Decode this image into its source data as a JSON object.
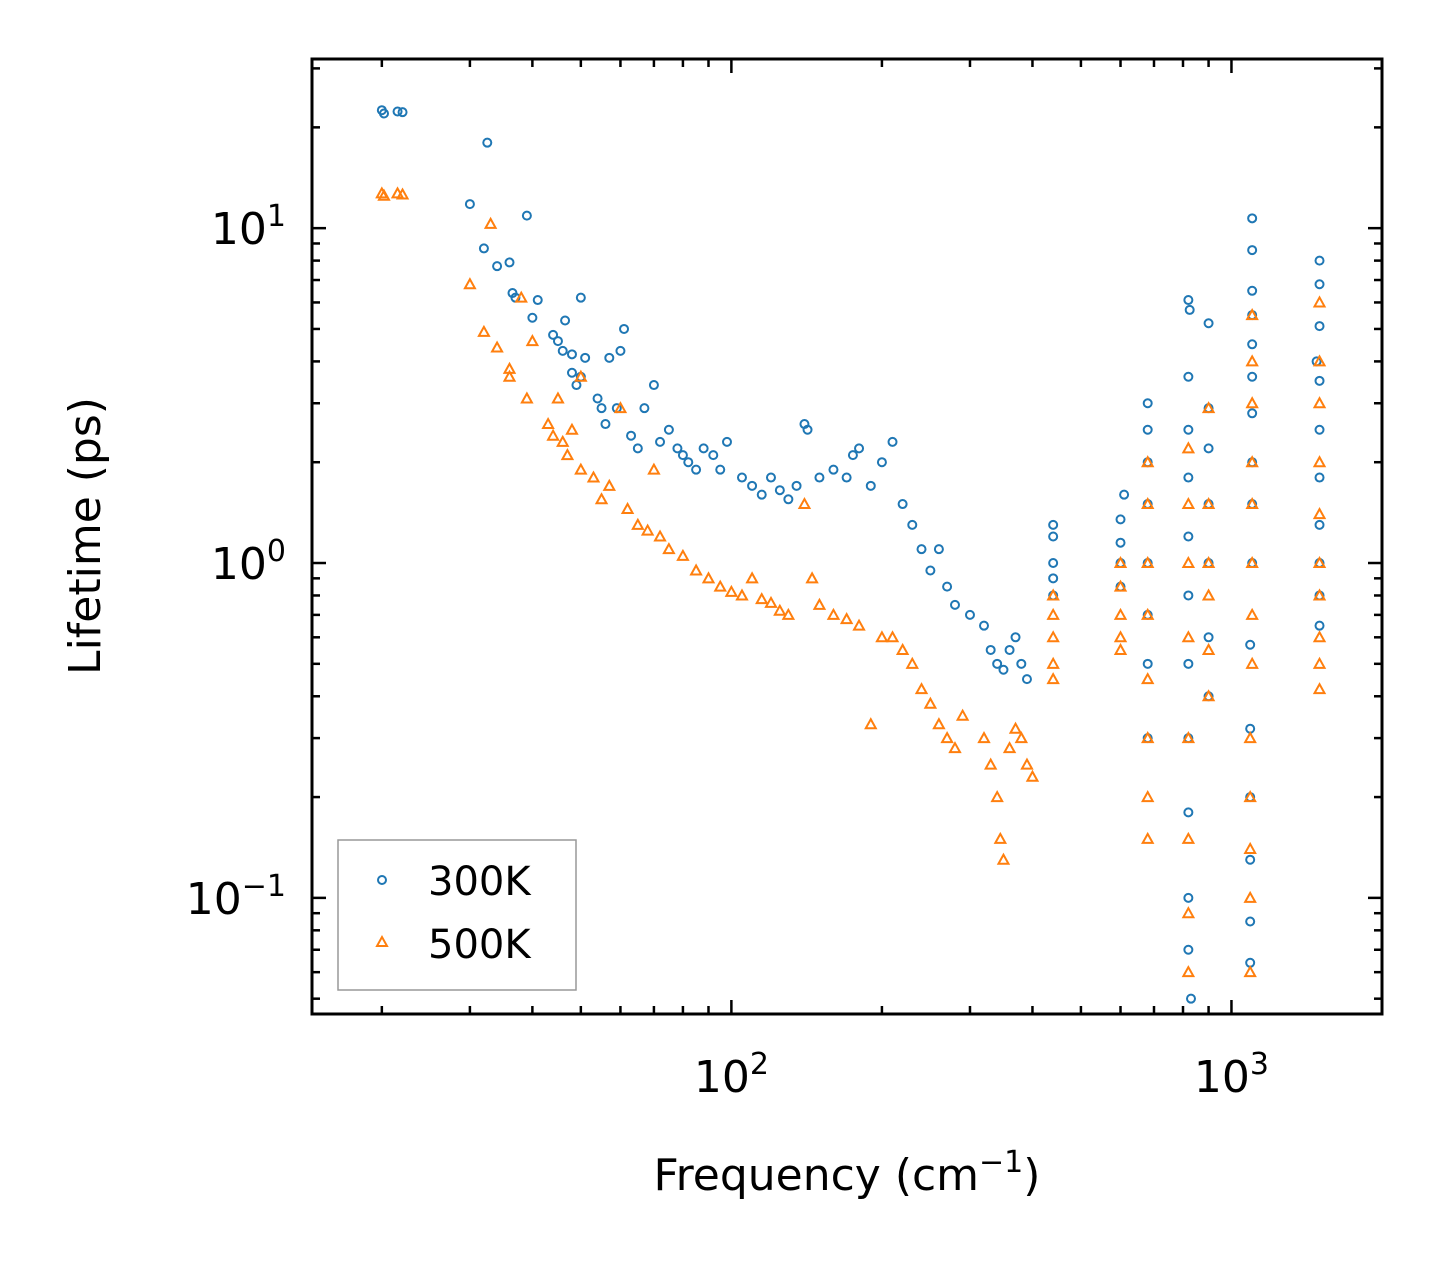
{
  "chart_data": {
    "type": "scatter",
    "title": "",
    "xlabel": "Frequency (cm",
    "xlabel_sup": "−1",
    "xlabel_close": ")",
    "ylabel": "Lifetime (ps)",
    "xscale": "log",
    "yscale": "log",
    "xlim": [
      14.5,
      2000
    ],
    "ylim": [
      0.045,
      32
    ],
    "x_ticks": [
      {
        "value": 100,
        "base": "10",
        "exp": "2"
      },
      {
        "value": 1000,
        "base": "10",
        "exp": "3"
      }
    ],
    "y_ticks": [
      {
        "value": 0.1,
        "base": "10",
        "exp": "−1"
      },
      {
        "value": 1,
        "base": "10",
        "exp": "0"
      },
      {
        "value": 10,
        "base": "10",
        "exp": "1"
      }
    ],
    "legend_position": "lower-left",
    "series": [
      {
        "name": "300K",
        "marker": "circle",
        "color": "#1f77b4",
        "points": [
          [
            20,
            22.5
          ],
          [
            20.2,
            22
          ],
          [
            21.5,
            22.3
          ],
          [
            22,
            22.2
          ],
          [
            30,
            11.8
          ],
          [
            32,
            8.7
          ],
          [
            32.5,
            18
          ],
          [
            34,
            7.7
          ],
          [
            36,
            7.9
          ],
          [
            36.5,
            6.4
          ],
          [
            37,
            6.2
          ],
          [
            39,
            10.9
          ],
          [
            40,
            5.4
          ],
          [
            41,
            6.1
          ],
          [
            44,
            4.8
          ],
          [
            45,
            4.6
          ],
          [
            46,
            4.3
          ],
          [
            46.5,
            5.3
          ],
          [
            48,
            4.2
          ],
          [
            48,
            3.7
          ],
          [
            49,
            3.4
          ],
          [
            50,
            3.6
          ],
          [
            50,
            6.2
          ],
          [
            51,
            4.1
          ],
          [
            54,
            3.1
          ],
          [
            55,
            2.9
          ],
          [
            56,
            2.6
          ],
          [
            57,
            4.1
          ],
          [
            59,
            2.9
          ],
          [
            60,
            4.3
          ],
          [
            61,
            5
          ],
          [
            63,
            2.4
          ],
          [
            65,
            2.2
          ],
          [
            67,
            2.9
          ],
          [
            70,
            3.4
          ],
          [
            72,
            2.3
          ],
          [
            75,
            2.5
          ],
          [
            78,
            2.2
          ],
          [
            80,
            2.1
          ],
          [
            82,
            2
          ],
          [
            85,
            1.9
          ],
          [
            88,
            2.2
          ],
          [
            92,
            2.1
          ],
          [
            95,
            1.9
          ],
          [
            98,
            2.3
          ],
          [
            105,
            1.8
          ],
          [
            110,
            1.7
          ],
          [
            115,
            1.6
          ],
          [
            120,
            1.8
          ],
          [
            125,
            1.65
          ],
          [
            130,
            1.55
          ],
          [
            135,
            1.7
          ],
          [
            140,
            2.6
          ],
          [
            142,
            2.5
          ],
          [
            150,
            1.8
          ],
          [
            160,
            1.9
          ],
          [
            170,
            1.8
          ],
          [
            175,
            2.1
          ],
          [
            180,
            2.2
          ],
          [
            190,
            1.7
          ],
          [
            200,
            2
          ],
          [
            210,
            2.3
          ],
          [
            220,
            1.5
          ],
          [
            230,
            1.3
          ],
          [
            240,
            1.1
          ],
          [
            250,
            0.95
          ],
          [
            260,
            1.1
          ],
          [
            270,
            0.85
          ],
          [
            280,
            0.75
          ],
          [
            300,
            0.7
          ],
          [
            320,
            0.65
          ],
          [
            330,
            0.55
          ],
          [
            340,
            0.5
          ],
          [
            350,
            0.48
          ],
          [
            360,
            0.55
          ],
          [
            370,
            0.6
          ],
          [
            380,
            0.5
          ],
          [
            390,
            0.45
          ],
          [
            440,
            1.3
          ],
          [
            440,
            1.2
          ],
          [
            440,
            1.0
          ],
          [
            440,
            0.9
          ],
          [
            440,
            0.8
          ],
          [
            600,
            1.35
          ],
          [
            600,
            1.15
          ],
          [
            600,
            1.0
          ],
          [
            600,
            0.85
          ],
          [
            610,
            1.6
          ],
          [
            680,
            3.0
          ],
          [
            680,
            2.5
          ],
          [
            680,
            2.0
          ],
          [
            680,
            1.5
          ],
          [
            680,
            1.0
          ],
          [
            680,
            0.7
          ],
          [
            680,
            0.5
          ],
          [
            680,
            0.3
          ],
          [
            820,
            6.1
          ],
          [
            825,
            5.7
          ],
          [
            820,
            3.6
          ],
          [
            820,
            2.5
          ],
          [
            820,
            1.8
          ],
          [
            820,
            1.2
          ],
          [
            820,
            0.8
          ],
          [
            820,
            0.5
          ],
          [
            820,
            0.3
          ],
          [
            820,
            0.18
          ],
          [
            820,
            0.1
          ],
          [
            820,
            0.07
          ],
          [
            830,
            0.05
          ],
          [
            900,
            5.2
          ],
          [
            900,
            2.9
          ],
          [
            900,
            2.2
          ],
          [
            900,
            1.5
          ],
          [
            900,
            1.0
          ],
          [
            900,
            0.6
          ],
          [
            900,
            0.4
          ],
          [
            1100,
            10.7
          ],
          [
            1100,
            8.6
          ],
          [
            1100,
            6.5
          ],
          [
            1100,
            5.5
          ],
          [
            1100,
            4.5
          ],
          [
            1100,
            3.6
          ],
          [
            1100,
            2.8
          ],
          [
            1100,
            2.0
          ],
          [
            1100,
            1.5
          ],
          [
            1100,
            1.0
          ],
          [
            1090,
            0.57
          ],
          [
            1090,
            0.32
          ],
          [
            1090,
            0.2
          ],
          [
            1090,
            0.13
          ],
          [
            1090,
            0.085
          ],
          [
            1090,
            0.064
          ],
          [
            1500,
            8.0
          ],
          [
            1500,
            6.8
          ],
          [
            1500,
            5.1
          ],
          [
            1480,
            4.0
          ],
          [
            1500,
            3.5
          ],
          [
            1500,
            2.5
          ],
          [
            1500,
            1.8
          ],
          [
            1500,
            1.3
          ],
          [
            1500,
            1.0
          ],
          [
            1500,
            0.8
          ],
          [
            1500,
            0.65
          ]
        ]
      },
      {
        "name": "500K",
        "marker": "triangle",
        "color": "#ff7f0e",
        "points": [
          [
            20,
            12.7
          ],
          [
            20.2,
            12.5
          ],
          [
            21.5,
            12.7
          ],
          [
            22,
            12.6
          ],
          [
            30,
            6.8
          ],
          [
            32,
            4.9
          ],
          [
            33,
            10.3
          ],
          [
            34,
            4.4
          ],
          [
            36,
            3.8
          ],
          [
            36,
            3.6
          ],
          [
            38,
            6.2
          ],
          [
            39,
            3.1
          ],
          [
            40,
            4.6
          ],
          [
            43,
            2.6
          ],
          [
            44,
            2.4
          ],
          [
            45,
            3.1
          ],
          [
            46,
            2.3
          ],
          [
            47,
            2.1
          ],
          [
            48,
            2.5
          ],
          [
            50,
            3.6
          ],
          [
            50,
            1.9
          ],
          [
            53,
            1.8
          ],
          [
            55,
            1.55
          ],
          [
            57,
            1.7
          ],
          [
            60,
            2.9
          ],
          [
            62,
            1.45
          ],
          [
            65,
            1.3
          ],
          [
            68,
            1.25
          ],
          [
            70,
            1.9
          ],
          [
            72,
            1.2
          ],
          [
            75,
            1.1
          ],
          [
            80,
            1.05
          ],
          [
            85,
            0.95
          ],
          [
            90,
            0.9
          ],
          [
            95,
            0.85
          ],
          [
            100,
            0.82
          ],
          [
            105,
            0.8
          ],
          [
            110,
            0.9
          ],
          [
            115,
            0.78
          ],
          [
            120,
            0.76
          ],
          [
            125,
            0.72
          ],
          [
            130,
            0.7
          ],
          [
            140,
            1.5
          ],
          [
            145,
            0.9
          ],
          [
            150,
            0.75
          ],
          [
            160,
            0.7
          ],
          [
            170,
            0.68
          ],
          [
            180,
            0.65
          ],
          [
            190,
            0.33
          ],
          [
            200,
            0.6
          ],
          [
            210,
            0.6
          ],
          [
            220,
            0.55
          ],
          [
            230,
            0.5
          ],
          [
            240,
            0.42
          ],
          [
            250,
            0.38
          ],
          [
            260,
            0.33
          ],
          [
            270,
            0.3
          ],
          [
            280,
            0.28
          ],
          [
            290,
            0.35
          ],
          [
            320,
            0.3
          ],
          [
            330,
            0.25
          ],
          [
            340,
            0.2
          ],
          [
            345,
            0.15
          ],
          [
            350,
            0.13
          ],
          [
            360,
            0.28
          ],
          [
            370,
            0.32
          ],
          [
            380,
            0.3
          ],
          [
            390,
            0.25
          ],
          [
            400,
            0.23
          ],
          [
            440,
            0.8
          ],
          [
            440,
            0.7
          ],
          [
            440,
            0.6
          ],
          [
            440,
            0.5
          ],
          [
            440,
            0.45
          ],
          [
            600,
            1.0
          ],
          [
            600,
            0.85
          ],
          [
            600,
            0.7
          ],
          [
            600,
            0.6
          ],
          [
            600,
            0.55
          ],
          [
            680,
            2.0
          ],
          [
            680,
            1.5
          ],
          [
            680,
            1.0
          ],
          [
            680,
            0.7
          ],
          [
            680,
            0.45
          ],
          [
            680,
            0.3
          ],
          [
            680,
            0.2
          ],
          [
            680,
            0.15
          ],
          [
            820,
            2.2
          ],
          [
            820,
            1.5
          ],
          [
            820,
            1.0
          ],
          [
            820,
            0.6
          ],
          [
            820,
            0.3
          ],
          [
            820,
            0.15
          ],
          [
            820,
            0.09
          ],
          [
            820,
            0.06
          ],
          [
            900,
            2.9
          ],
          [
            900,
            1.5
          ],
          [
            900,
            1.0
          ],
          [
            900,
            0.8
          ],
          [
            900,
            0.55
          ],
          [
            900,
            0.4
          ],
          [
            1100,
            5.5
          ],
          [
            1100,
            4.0
          ],
          [
            1100,
            3.0
          ],
          [
            1100,
            2.0
          ],
          [
            1100,
            1.5
          ],
          [
            1100,
            1.0
          ],
          [
            1100,
            0.7
          ],
          [
            1100,
            0.5
          ],
          [
            1090,
            0.3
          ],
          [
            1090,
            0.2
          ],
          [
            1090,
            0.14
          ],
          [
            1090,
            0.1
          ],
          [
            1090,
            0.06
          ],
          [
            1500,
            6.0
          ],
          [
            1500,
            4.0
          ],
          [
            1500,
            3.0
          ],
          [
            1500,
            2.0
          ],
          [
            1500,
            1.4
          ],
          [
            1500,
            1.0
          ],
          [
            1500,
            0.8
          ],
          [
            1500,
            0.6
          ],
          [
            1500,
            0.5
          ],
          [
            1500,
            0.42
          ]
        ]
      }
    ]
  }
}
